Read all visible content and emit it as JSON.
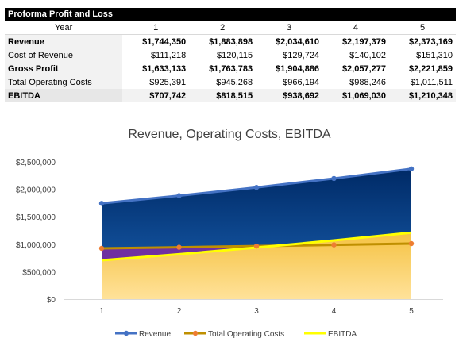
{
  "table": {
    "title": "Proforma Profit and Loss",
    "header_label": "Year",
    "years": [
      "1",
      "2",
      "3",
      "4",
      "5"
    ],
    "rows": [
      {
        "label": "Revenue",
        "bold": true,
        "values": [
          "$1,744,350",
          "$1,883,898",
          "$2,034,610",
          "$2,197,379",
          "$2,373,169"
        ]
      },
      {
        "label": "Cost of Revenue",
        "bold": false,
        "values": [
          "$111,218",
          "$120,115",
          "$129,724",
          "$140,102",
          "$151,310"
        ]
      },
      {
        "label": "Gross Profit",
        "bold": true,
        "values": [
          "$1,633,133",
          "$1,763,783",
          "$1,904,886",
          "$2,057,277",
          "$2,221,859"
        ]
      },
      {
        "label": "Total Operating Costs",
        "bold": false,
        "values": [
          "$925,391",
          "$945,268",
          "$966,194",
          "$988,246",
          "$1,011,511"
        ]
      },
      {
        "label": "EBITDA",
        "bold": true,
        "values": [
          "$707,742",
          "$818,515",
          "$938,692",
          "$1,069,030",
          "$1,210,348"
        ]
      }
    ]
  },
  "chart_data": {
    "type": "area",
    "title": "Revenue, Operating Costs, EBITDA",
    "x": [
      1,
      2,
      3,
      4,
      5
    ],
    "xlabel": "",
    "ylabel": "",
    "ylim": [
      0,
      2500000
    ],
    "yticks": [
      0,
      500000,
      1000000,
      1500000,
      2000000,
      2500000
    ],
    "ytick_labels": [
      "$0",
      "$500,000",
      "$1,000,000",
      "$1,500,000",
      "$2,000,000",
      "$2,500,000"
    ],
    "grid": false,
    "legend_position": "bottom",
    "series": [
      {
        "name": "Revenue",
        "values": [
          1744350,
          1883898,
          2034610,
          2197379,
          2373169
        ],
        "color": "#4472c4",
        "fill_top": "#002a66",
        "fill_bottom": "#1a63b5"
      },
      {
        "name": "Total Operating Costs",
        "values": [
          925391,
          945268,
          966194,
          988246,
          1011511
        ],
        "color": "#ed7d31",
        "line_color": "#bf8f00",
        "fill": "#7030a0"
      },
      {
        "name": "EBITDA",
        "values": [
          707742,
          818515,
          938692,
          1069030,
          1210348
        ],
        "color": "#ffff00",
        "fill_top": "#f5c242",
        "fill_bottom": "#ffe29a"
      }
    ]
  }
}
